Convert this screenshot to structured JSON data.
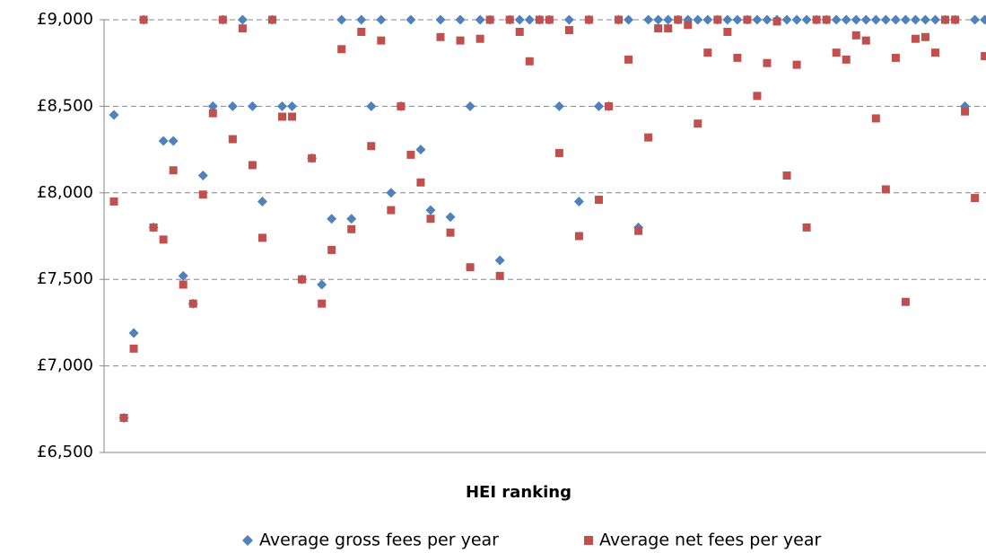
{
  "chart_data": {
    "type": "scatter",
    "x_label": "HEI ranking",
    "categories": [
      null,
      null,
      null,
      null,
      null,
      null,
      null,
      null,
      null,
      null,
      null,
      null,
      null,
      null,
      null,
      null,
      null,
      null,
      null,
      null,
      null,
      null,
      null,
      null,
      null,
      null,
      null,
      null,
      null,
      null,
      null,
      null,
      null,
      null,
      null,
      null,
      null,
      null,
      null,
      null,
      null,
      null,
      null,
      null,
      null,
      null,
      null,
      null,
      null,
      null,
      null,
      null,
      null,
      null,
      null,
      null,
      null,
      null,
      null,
      null,
      null,
      null,
      null,
      null,
      null,
      null,
      null,
      null,
      null,
      null,
      null,
      null,
      null,
      null,
      null,
      null,
      null,
      null,
      null,
      null,
      null,
      null,
      null,
      null,
      null,
      null,
      null,
      null,
      null
    ],
    "series": [
      {
        "name": "Average gross fees per year",
        "color": "#4f81bd",
        "marker": "diamond",
        "values": [
          8450,
          6700,
          7190,
          9000,
          7800,
          8300,
          8300,
          7520,
          7360,
          8100,
          8500,
          9000,
          8500,
          9000,
          8500,
          7950,
          9000,
          8500,
          8500,
          7500,
          8200,
          7470,
          7850,
          9000,
          7850,
          9000,
          8500,
          9000,
          8000,
          8500,
          9000,
          8250,
          7900,
          9000,
          7860,
          9000,
          8500,
          9000,
          9000,
          7610,
          9000,
          9000,
          9000,
          9000,
          9000,
          8500,
          9000,
          7950,
          9000,
          8500,
          8500,
          9000,
          9000,
          7800,
          9000,
          9000,
          9000,
          9000,
          9000,
          9000,
          9000,
          9000,
          9000,
          9000,
          9000,
          9000,
          9000,
          9000,
          9000,
          9000,
          9000,
          9000,
          9000,
          9000,
          9000,
          9000,
          9000,
          9000,
          9000,
          9000,
          9000,
          9000,
          9000,
          9000,
          9000,
          9000,
          8500,
          9000,
          9000
        ]
      },
      {
        "name": "Average net fees per year",
        "color": "#c0504d",
        "marker": "square",
        "values": [
          7950,
          6700,
          7100,
          9000,
          7800,
          7730,
          8130,
          7470,
          7360,
          7990,
          8460,
          9000,
          8310,
          8950,
          8160,
          7740,
          9000,
          8440,
          8440,
          7500,
          8200,
          7360,
          7670,
          8830,
          7790,
          8930,
          8270,
          8880,
          7900,
          8500,
          8220,
          8060,
          7850,
          8900,
          7770,
          8880,
          7570,
          8890,
          9000,
          7520,
          9000,
          8930,
          8760,
          9000,
          9000,
          8230,
          8940,
          7750,
          9000,
          7960,
          8500,
          9000,
          8770,
          7780,
          8320,
          8950,
          8950,
          9000,
          8970,
          8400,
          8810,
          9000,
          8930,
          8780,
          9000,
          8560,
          8750,
          8990,
          8100,
          8740,
          7800,
          9000,
          9000,
          8810,
          8770,
          8910,
          8880,
          8430,
          8020,
          8780,
          7370,
          8890,
          8900,
          8810,
          9000,
          9000,
          8470,
          7970,
          8790
        ]
      }
    ],
    "ylim": [
      6500,
      9000
    ],
    "yticks": [
      {
        "value": 6500,
        "label": "£6,500"
      },
      {
        "value": 7000,
        "label": "£7,000"
      },
      {
        "value": 7500,
        "label": "£7,500"
      },
      {
        "value": 8000,
        "label": "£8,000"
      },
      {
        "value": 8500,
        "label": "£8,500"
      },
      {
        "value": 9000,
        "label": "£9,000"
      }
    ],
    "grid": true,
    "legend": "bottom"
  }
}
